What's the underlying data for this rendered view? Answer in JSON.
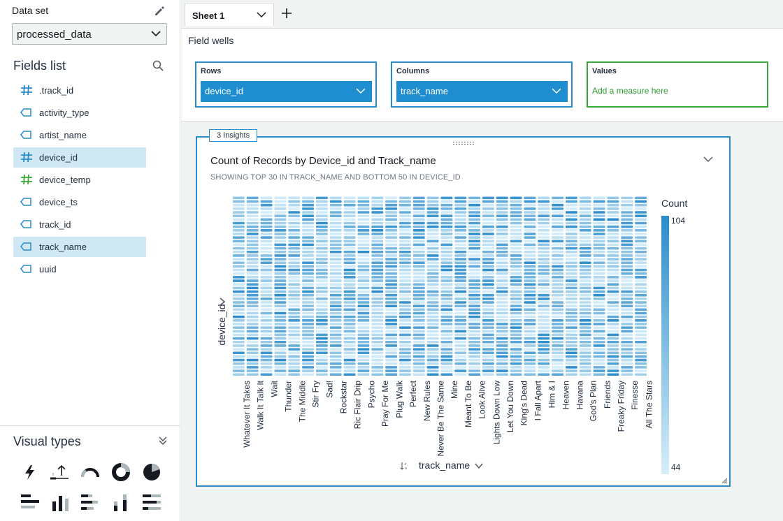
{
  "sidebar": {
    "dataset_label": "Data set",
    "dataset_value": "processed_data",
    "fields_title": "Fields list",
    "fields": [
      {
        "name": ".track_id",
        "type": "measure"
      },
      {
        "name": "activity_type",
        "type": "dimension"
      },
      {
        "name": "artist_name",
        "type": "dimension"
      },
      {
        "name": "device_id",
        "type": "measure",
        "selected": true
      },
      {
        "name": "device_temp",
        "type": "measure-green"
      },
      {
        "name": "device_ts",
        "type": "dimension"
      },
      {
        "name": "track_id",
        "type": "dimension"
      },
      {
        "name": "track_name",
        "type": "dimension",
        "selected": true
      },
      {
        "name": "uuid",
        "type": "dimension"
      }
    ],
    "visual_types_title": "Visual types"
  },
  "tabs": {
    "sheet_label": "Sheet 1"
  },
  "field_wells": {
    "title": "Field wells",
    "rows_label": "Rows",
    "rows_value": "device_id",
    "columns_label": "Columns",
    "columns_value": "track_name",
    "values_label": "Values",
    "values_placeholder": "Add a measure here"
  },
  "visual": {
    "insights_badge": "3 Insights",
    "title": "Count of Records by Device_id and Track_name",
    "subtitle": "SHOWING TOP 30 IN TRACK_NAME AND BOTTOM 50 IN DEVICE_ID"
  },
  "colors": {
    "accent": "#2b8ccc",
    "selected_field": "#cfe8f4",
    "values_well": "#3aa63a",
    "heat_max": "#2b8ccc",
    "heat_min": "#d6eef9"
  },
  "chart_data": {
    "type": "heatmap",
    "title": "Count of Records by Device_id and Track_name",
    "xlabel": "track_name",
    "ylabel": "device_id",
    "x": [
      "Whatever It Takes",
      "Walk It Talk It",
      "Wait",
      "Thunder",
      "The Middle",
      "Stir Fry",
      "Sad!",
      "Rockstar",
      "Ric Flair Drip",
      "Psycho",
      "Pray For Me",
      "Plug Walk",
      "Perfect",
      "New Rules",
      "Never Be The Same",
      "Mine",
      "Meant To Be",
      "Look Alive",
      "Lights Down Low",
      "Let You Down",
      "King's Dead",
      "I Fall Apart",
      "Him & I",
      "Heaven",
      "Havana",
      "God's Plan",
      "Friends",
      "Freaky Friday",
      "Finesse",
      "All The Stars"
    ],
    "y_count": 50,
    "legend_title": "Count",
    "color_range": [
      44,
      104
    ],
    "grid": false
  }
}
